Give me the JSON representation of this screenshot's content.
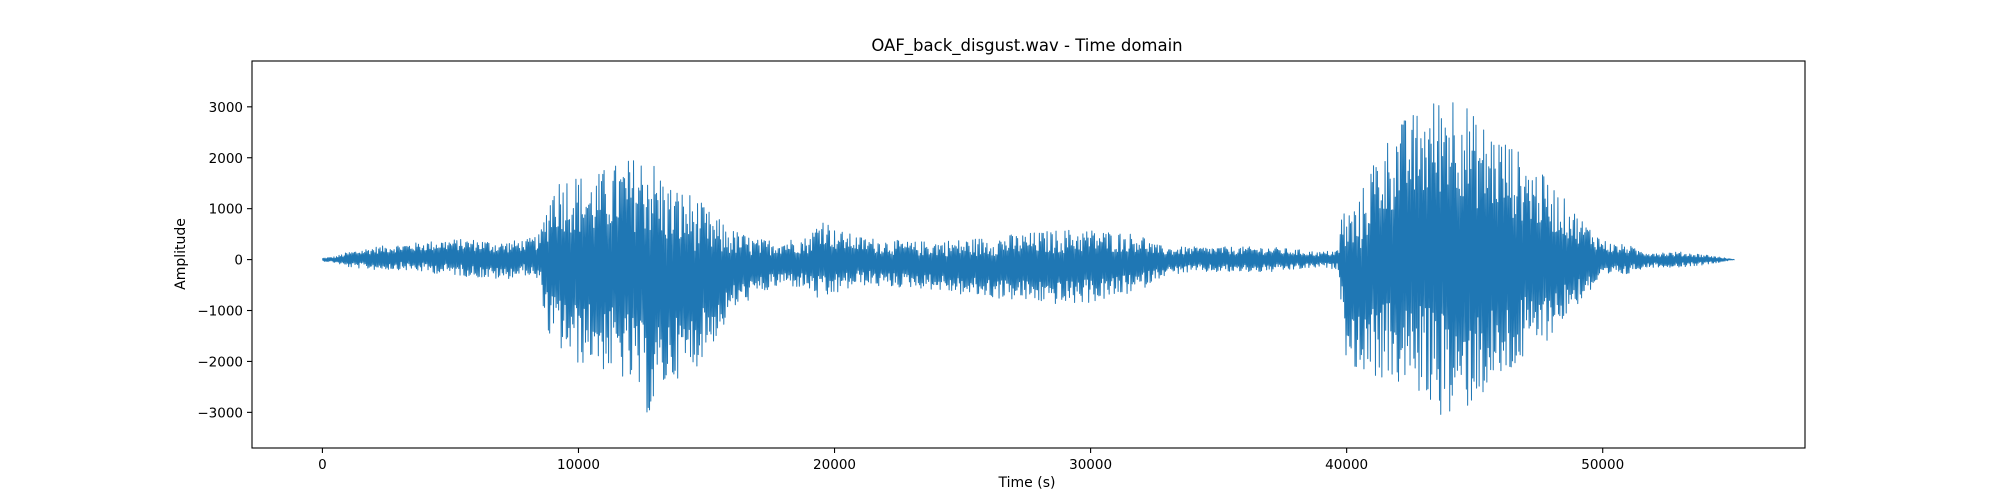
{
  "chart_data": {
    "type": "line",
    "title": "OAF_back_disgust.wav - Time domain",
    "xlabel": "Time (s)",
    "ylabel": "Amplitude",
    "xlim": [
      -2750,
      57900
    ],
    "ylim": [
      -3700,
      3900
    ],
    "grid": false,
    "legend": "none",
    "x_ticks": [
      0,
      10000,
      20000,
      30000,
      40000,
      50000
    ],
    "y_ticks": [
      -3000,
      -2000,
      -1000,
      0,
      1000,
      2000,
      3000
    ],
    "x_tick_labels": [
      "0",
      "10000",
      "20000",
      "30000",
      "40000",
      "50000"
    ],
    "y_tick_labels": [
      "−3000",
      "−2000",
      "−1000",
      "0",
      "1000",
      "2000",
      "3000"
    ],
    "series": [
      {
        "color": "#1f77b4",
        "sample_count": 55150,
        "envelope": {
          "x": [
            0,
            500,
            1000,
            2000,
            3000,
            4000,
            5000,
            6000,
            7000,
            8000,
            8500,
            8800,
            9000,
            9500,
            10000,
            10500,
            11000,
            11500,
            12000,
            12500,
            12800,
            13000,
            13300,
            13600,
            14000,
            14500,
            15000,
            15500,
            16000,
            17000,
            18000,
            19000,
            19500,
            20000,
            21000,
            22000,
            23000,
            24000,
            25000,
            26000,
            27000,
            28000,
            29000,
            30000,
            31000,
            32000,
            32500,
            33000,
            34000,
            35000,
            36000,
            37000,
            38000,
            39000,
            39700,
            39800,
            40000,
            40500,
            41000,
            42000,
            43000,
            43500,
            44000,
            44200,
            44500,
            45000,
            46000,
            47000,
            48000,
            49000,
            50000,
            50500,
            51000,
            51300,
            52000,
            53000,
            54000,
            55150
          ],
          "upper": [
            30,
            60,
            150,
            250,
            300,
            350,
            400,
            400,
            350,
            400,
            500,
            1200,
            1600,
            1700,
            1700,
            1600,
            1800,
            1900,
            2000,
            2100,
            2200,
            1900,
            1700,
            1500,
            1400,
            1300,
            1000,
            800,
            600,
            400,
            400,
            450,
            900,
            600,
            450,
            400,
            350,
            380,
            400,
            450,
            500,
            550,
            600,
            600,
            550,
            500,
            300,
            250,
            250,
            250,
            250,
            250,
            200,
            150,
            200,
            1000,
            1000,
            1200,
            2000,
            2700,
            3000,
            3200,
            3500,
            3400,
            3300,
            2800,
            2500,
            2000,
            1500,
            900,
            400,
            300,
            300,
            200,
            150,
            150,
            100,
            0
          ],
          "lower": [
            -30,
            -60,
            -150,
            -200,
            -200,
            -250,
            -300,
            -350,
            -400,
            -300,
            -500,
            -1500,
            -1700,
            -1900,
            -2100,
            -2000,
            -2200,
            -2300,
            -2500,
            -2800,
            -3200,
            -2900,
            -2600,
            -2400,
            -2300,
            -2200,
            -1800,
            -1500,
            -1000,
            -700,
            -500,
            -600,
            -900,
            -700,
            -500,
            -550,
            -550,
            -600,
            -700,
            -750,
            -800,
            -850,
            -900,
            -850,
            -750,
            -600,
            -400,
            -300,
            -250,
            -250,
            -250,
            -250,
            -200,
            -150,
            -200,
            -1000,
            -2000,
            -2200,
            -2300,
            -2500,
            -2700,
            -3000,
            -3200,
            -3300,
            -3100,
            -2800,
            -2500,
            -2000,
            -1500,
            -900,
            -400,
            -300,
            -300,
            -200,
            -150,
            -150,
            -100,
            0
          ]
        }
      }
    ]
  }
}
